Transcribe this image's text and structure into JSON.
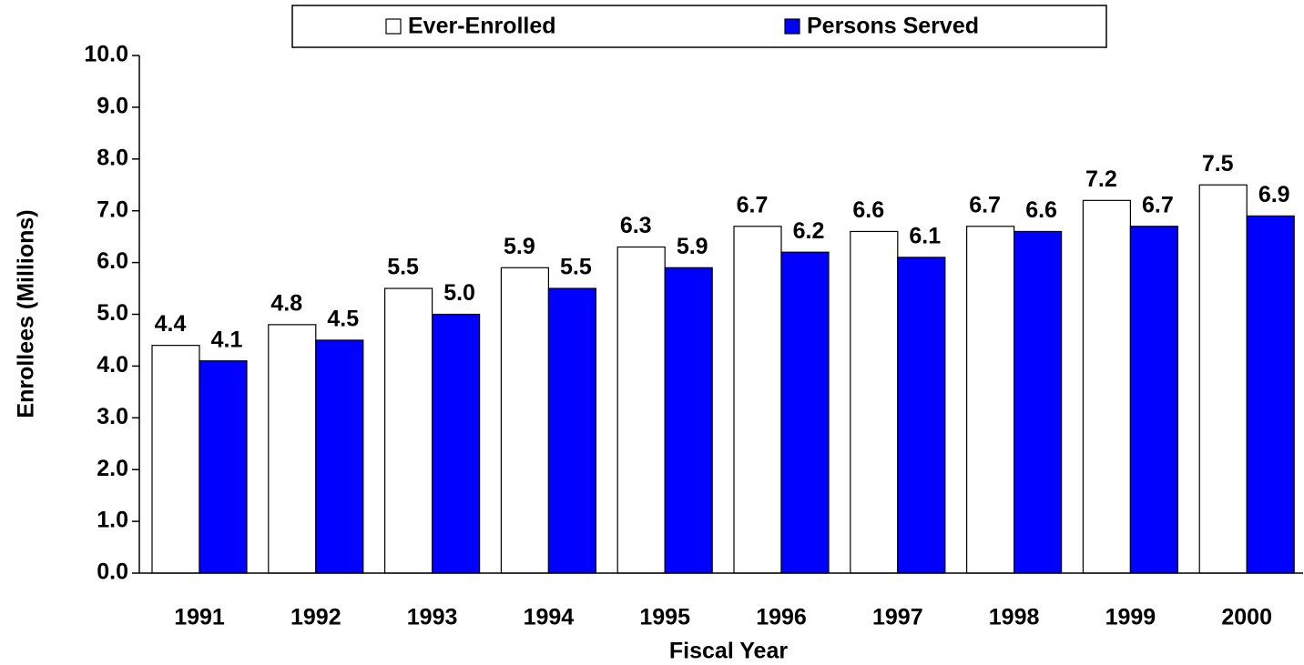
{
  "chart_data": {
    "type": "bar",
    "x_label": "Fiscal Year",
    "y_label": "Enrollees (Millions)",
    "categories": [
      "1991",
      "1992",
      "1993",
      "1994",
      "1995",
      "1996",
      "1997",
      "1998",
      "1999",
      "2000"
    ],
    "series": [
      {
        "name": "Ever-Enrolled",
        "color": "#ffffff",
        "values": [
          4.4,
          4.8,
          5.5,
          5.9,
          6.3,
          6.7,
          6.6,
          6.7,
          7.2,
          7.5
        ],
        "value_labels": [
          "4.4",
          "4.8",
          "5.5",
          "5.9",
          "6.3",
          "6.7",
          "6.6",
          "6.7",
          "7.2",
          "7.5"
        ]
      },
      {
        "name": "Persons Served",
        "color": "#0000ff",
        "values": [
          4.1,
          4.5,
          5.0,
          5.5,
          5.9,
          6.2,
          6.1,
          6.6,
          6.7,
          6.9
        ],
        "value_labels": [
          "4.1",
          "4.5",
          "5.0",
          "5.5",
          "5.9",
          "6.2",
          "6.1",
          "6.6",
          "6.7",
          "6.9"
        ]
      }
    ],
    "ylim": [
      0,
      10
    ],
    "yticks": [
      {
        "value": 0,
        "label": "0.0"
      },
      {
        "value": 1,
        "label": "1.0"
      },
      {
        "value": 2,
        "label": "2.0"
      },
      {
        "value": 3,
        "label": "3.0"
      },
      {
        "value": 4,
        "label": "4.0"
      },
      {
        "value": 5,
        "label": "5.0"
      },
      {
        "value": 6,
        "label": "6.0"
      },
      {
        "value": 7,
        "label": "7.0"
      },
      {
        "value": 8,
        "label": "8.0"
      },
      {
        "value": 9,
        "label": "9.0"
      },
      {
        "value": 10,
        "label": "10.0"
      }
    ],
    "legend": "top"
  }
}
